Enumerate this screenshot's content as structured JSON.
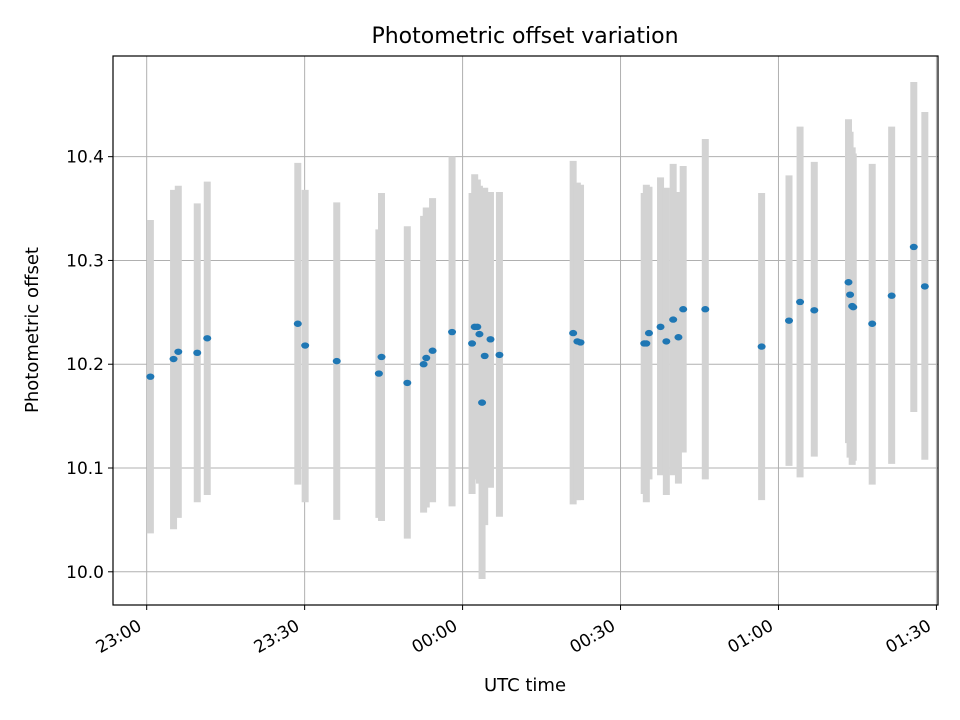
{
  "chart_data": {
    "type": "scatter",
    "title": "Photometric offset variation",
    "xlabel": "UTC time",
    "ylabel": "Photometric offset",
    "x_ticks": [
      "23:00",
      "23:30",
      "00:00",
      "00:30",
      "01:00",
      "01:30"
    ],
    "y_ticks": [
      "10.0",
      "10.1",
      "10.2",
      "10.3",
      "10.4"
    ],
    "x_tick_minutes": [
      0,
      30,
      60,
      90,
      120,
      150
    ],
    "y_tick_values": [
      10.0,
      10.1,
      10.2,
      10.3,
      10.4
    ],
    "x_unit": "minutes after 23:00 UTC",
    "xlim": [
      -6.4,
      150.3
    ],
    "ylim": [
      9.968,
      10.497
    ],
    "grid": true,
    "colors": {
      "point": "#1f77b4",
      "errorbar": "#d3d3d3",
      "grid": "#b0b0b0",
      "axis": "#000000"
    },
    "series": [
      {
        "points": [
          {
            "x": 0.7,
            "y": 10.188,
            "lo": 10.037,
            "hi": 10.339
          },
          {
            "x": 5.1,
            "y": 10.205,
            "lo": 10.041,
            "hi": 10.368
          },
          {
            "x": 6.0,
            "y": 10.212,
            "lo": 10.052,
            "hi": 10.372
          },
          {
            "x": 9.6,
            "y": 10.211,
            "lo": 10.067,
            "hi": 10.355
          },
          {
            "x": 11.5,
            "y": 10.225,
            "lo": 10.074,
            "hi": 10.376
          },
          {
            "x": 28.7,
            "y": 10.239,
            "lo": 10.084,
            "hi": 10.394
          },
          {
            "x": 30.1,
            "y": 10.218,
            "lo": 10.067,
            "hi": 10.368
          },
          {
            "x": 36.1,
            "y": 10.203,
            "lo": 10.05,
            "hi": 10.356
          },
          {
            "x": 44.1,
            "y": 10.191,
            "lo": 10.052,
            "hi": 10.33
          },
          {
            "x": 44.6,
            "y": 10.207,
            "lo": 10.049,
            "hi": 10.365
          },
          {
            "x": 49.5,
            "y": 10.182,
            "lo": 10.032,
            "hi": 10.333
          },
          {
            "x": 52.6,
            "y": 10.2,
            "lo": 10.057,
            "hi": 10.343
          },
          {
            "x": 53.1,
            "y": 10.206,
            "lo": 10.062,
            "hi": 10.351
          },
          {
            "x": 54.3,
            "y": 10.213,
            "lo": 10.067,
            "hi": 10.36
          },
          {
            "x": 58.0,
            "y": 10.231,
            "lo": 10.063,
            "hi": 10.4
          },
          {
            "x": 61.8,
            "y": 10.22,
            "lo": 10.075,
            "hi": 10.365
          },
          {
            "x": 62.3,
            "y": 10.236,
            "lo": 10.089,
            "hi": 10.383
          },
          {
            "x": 62.8,
            "y": 10.236,
            "lo": 10.093,
            "hi": 10.378
          },
          {
            "x": 63.2,
            "y": 10.229,
            "lo": 10.085,
            "hi": 10.372
          },
          {
            "x": 63.7,
            "y": 10.163,
            "lo": 9.993,
            "hi": 10.331
          },
          {
            "x": 64.2,
            "y": 10.208,
            "lo": 10.045,
            "hi": 10.37
          },
          {
            "x": 65.3,
            "y": 10.224,
            "lo": 10.081,
            "hi": 10.366
          },
          {
            "x": 67.0,
            "y": 10.209,
            "lo": 10.053,
            "hi": 10.366
          },
          {
            "x": 81.0,
            "y": 10.23,
            "lo": 10.065,
            "hi": 10.396
          },
          {
            "x": 81.8,
            "y": 10.222,
            "lo": 10.069,
            "hi": 10.375
          },
          {
            "x": 82.4,
            "y": 10.221,
            "lo": 10.069,
            "hi": 10.373
          },
          {
            "x": 94.5,
            "y": 10.22,
            "lo": 10.075,
            "hi": 10.365
          },
          {
            "x": 94.9,
            "y": 10.22,
            "lo": 10.067,
            "hi": 10.373
          },
          {
            "x": 95.4,
            "y": 10.23,
            "lo": 10.089,
            "hi": 10.371
          },
          {
            "x": 97.6,
            "y": 10.236,
            "lo": 10.093,
            "hi": 10.38
          },
          {
            "x": 98.7,
            "y": 10.222,
            "lo": 10.074,
            "hi": 10.37
          },
          {
            "x": 100.0,
            "y": 10.243,
            "lo": 10.093,
            "hi": 10.393
          },
          {
            "x": 101.0,
            "y": 10.226,
            "lo": 10.085,
            "hi": 10.366
          },
          {
            "x": 101.9,
            "y": 10.253,
            "lo": 10.115,
            "hi": 10.391
          },
          {
            "x": 106.1,
            "y": 10.253,
            "lo": 10.089,
            "hi": 10.417
          },
          {
            "x": 116.8,
            "y": 10.217,
            "lo": 10.069,
            "hi": 10.365
          },
          {
            "x": 122.0,
            "y": 10.242,
            "lo": 10.102,
            "hi": 10.382
          },
          {
            "x": 124.1,
            "y": 10.26,
            "lo": 10.091,
            "hi": 10.429
          },
          {
            "x": 126.8,
            "y": 10.252,
            "lo": 10.111,
            "hi": 10.395
          },
          {
            "x": 133.3,
            "y": 10.279,
            "lo": 10.124,
            "hi": 10.436
          },
          {
            "x": 133.6,
            "y": 10.267,
            "lo": 10.11,
            "hi": 10.424
          },
          {
            "x": 134.0,
            "y": 10.256,
            "lo": 10.103,
            "hi": 10.409
          },
          {
            "x": 134.2,
            "y": 10.255,
            "lo": 10.107,
            "hi": 10.403
          },
          {
            "x": 137.8,
            "y": 10.239,
            "lo": 10.084,
            "hi": 10.393
          },
          {
            "x": 141.5,
            "y": 10.266,
            "lo": 10.104,
            "hi": 10.429
          },
          {
            "x": 145.7,
            "y": 10.313,
            "lo": 10.154,
            "hi": 10.472
          },
          {
            "x": 147.8,
            "y": 10.275,
            "lo": 10.108,
            "hi": 10.443
          }
        ]
      }
    ]
  }
}
